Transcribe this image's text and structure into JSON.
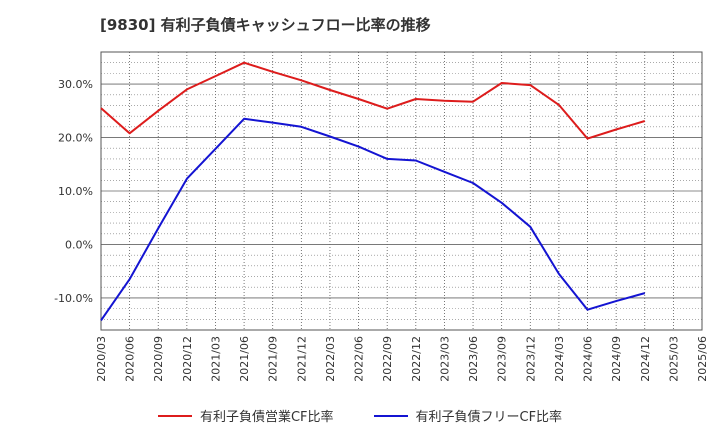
{
  "chart_data": {
    "type": "line",
    "title": "[9830]  有利子負債キャッシュフロー比率の推移",
    "xlabel": "",
    "ylabel": "",
    "x": [
      "2020/03",
      "2020/06",
      "2020/09",
      "2020/12",
      "2021/03",
      "2021/06",
      "2021/09",
      "2021/12",
      "2022/03",
      "2022/06",
      "2022/09",
      "2022/12",
      "2023/03",
      "2023/06",
      "2023/09",
      "2023/12",
      "2024/03",
      "2024/06",
      "2024/09",
      "2024/12",
      "2025/03",
      "2025/06"
    ],
    "yticks": [
      "30.0%",
      "20.0%",
      "10.0%",
      "0.0%",
      "-10.0%"
    ],
    "ylim": [
      -16,
      36
    ],
    "grid": true,
    "legend_position": "bottom",
    "series": [
      {
        "name": "有利子負債営業CF比率",
        "color": "#dd1c1c",
        "values": [
          25.5,
          20.8,
          25.0,
          29.0,
          31.5,
          34.0,
          32.3,
          30.7,
          28.9,
          27.2,
          25.4,
          27.2,
          26.9,
          26.7,
          30.2,
          29.8,
          26.1,
          19.8,
          21.5,
          23.1,
          null,
          null
        ]
      },
      {
        "name": "有利子負債フリーCF比率",
        "color": "#1414d2",
        "values": [
          -14.2,
          -6.5,
          3.0,
          12.3,
          17.9,
          23.5,
          22.8,
          22.0,
          20.2,
          18.3,
          16.0,
          15.7,
          13.6,
          11.5,
          7.8,
          3.3,
          -5.5,
          -12.2,
          -10.6,
          -9.1,
          null,
          null
        ]
      }
    ]
  }
}
